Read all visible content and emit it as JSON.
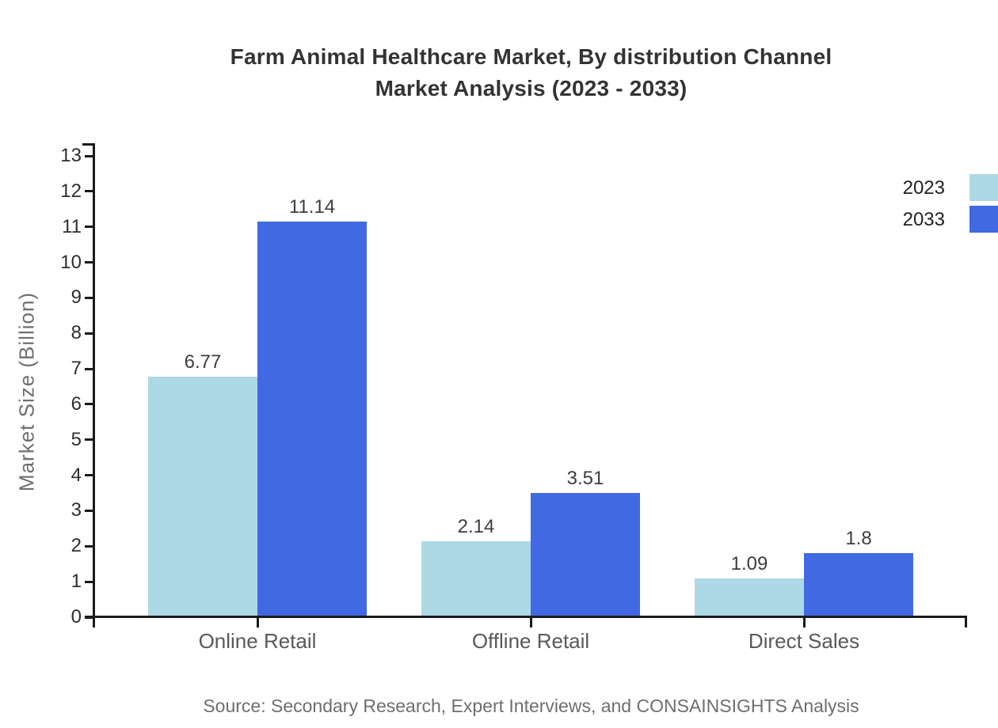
{
  "title": {
    "line1": "Farm Animal Healthcare Market, By distribution Channel",
    "line2": "Market Analysis (2023 - 2033)"
  },
  "source_note": "Source: Secondary Research, Expert Interviews, and CONSAINSIGHTS Analysis",
  "legend": {
    "position": "right",
    "items": [
      {
        "label": "2023",
        "color": "#ADD8E6"
      },
      {
        "label": "2033",
        "color": "#4169E1"
      }
    ]
  },
  "chart_data": {
    "type": "bar",
    "grouped": true,
    "title": "Farm Animal Healthcare Market, By distribution Channel Market Analysis (2023 - 2033)",
    "categories": [
      "Online Retail",
      "Offline Retail",
      "Direct Sales"
    ],
    "series": [
      {
        "name": "2023",
        "color": "#ADD8E6",
        "values": [
          6.77,
          2.14,
          1.09
        ]
      },
      {
        "name": "2033",
        "color": "#4169E1",
        "values": [
          11.14,
          3.51,
          1.8
        ]
      }
    ],
    "value_labels": true,
    "xlabel": "",
    "ylabel": "Market Size (Billion)",
    "ylim": [
      0,
      13
    ],
    "yticks": [
      0,
      1,
      2,
      3,
      4,
      5,
      6,
      7,
      8,
      9,
      10,
      11,
      12,
      13
    ],
    "grid": false,
    "legend_position": "right",
    "axis_color": "#1a1a1a",
    "background_color": "#ffffff"
  }
}
